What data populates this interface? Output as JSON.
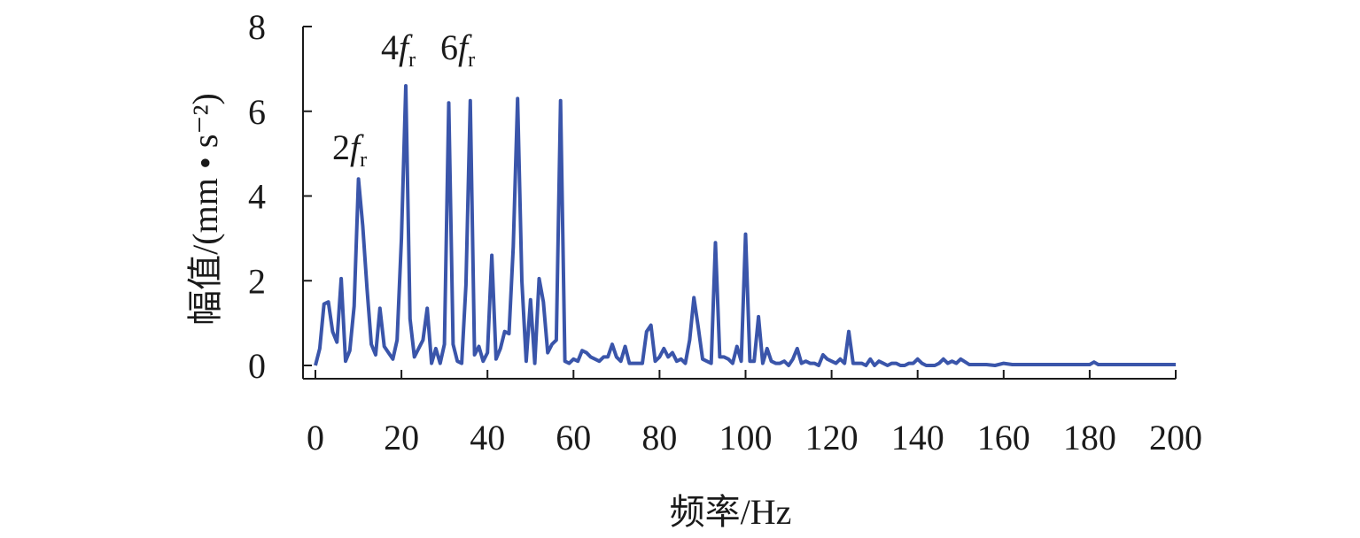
{
  "chart_data": {
    "type": "line",
    "title": "",
    "xlabel": "频率/Hz",
    "ylabel": "幅值/(mm • s⁻²)",
    "xlim": [
      0,
      200
    ],
    "ylim": [
      0,
      8
    ],
    "xticks": [
      0,
      20,
      40,
      60,
      80,
      100,
      120,
      140,
      160,
      180,
      200
    ],
    "yticks": [
      0,
      2,
      4,
      6,
      8
    ],
    "grid": false,
    "line_color": "#3a55aa",
    "series": [
      {
        "x": [
          0,
          1,
          2,
          3,
          4,
          5,
          6,
          7,
          8,
          9,
          10,
          11,
          12,
          13,
          14,
          15,
          16,
          17,
          18,
          19,
          20,
          21,
          22,
          23,
          24,
          25,
          26,
          27,
          28,
          29,
          30,
          31,
          32,
          33,
          34,
          35,
          36,
          37,
          38,
          39,
          40,
          41,
          42,
          43,
          44,
          45,
          46,
          47,
          48,
          49,
          50,
          51,
          52,
          53,
          54,
          55,
          56,
          57,
          58,
          59,
          60,
          61,
          62,
          63,
          64,
          65,
          66,
          67,
          68,
          69,
          70,
          71,
          72,
          73,
          74,
          75,
          76,
          77,
          78,
          79,
          80,
          81,
          82,
          83,
          84,
          85,
          86,
          87,
          88,
          89,
          90,
          91,
          92,
          93,
          94,
          95,
          96,
          97,
          98,
          99,
          100,
          101,
          102,
          103,
          104,
          105,
          106,
          107,
          108,
          109,
          110,
          111,
          112,
          113,
          114,
          115,
          116,
          117,
          118,
          119,
          120,
          121,
          122,
          123,
          124,
          125,
          126,
          127,
          128,
          129,
          130,
          131,
          132,
          133,
          134,
          135,
          136,
          137,
          138,
          139,
          140,
          141,
          142,
          143,
          144,
          145,
          146,
          147,
          148,
          149,
          150,
          152,
          154,
          156,
          158,
          160,
          162,
          164,
          166,
          168,
          170,
          172,
          174,
          176,
          178,
          180,
          181,
          182,
          184,
          186,
          188,
          190,
          192,
          194,
          196,
          198,
          200
        ],
        "values": [
          0.0,
          0.4,
          1.45,
          1.5,
          0.8,
          0.55,
          2.05,
          0.1,
          0.35,
          1.4,
          4.4,
          3.3,
          1.8,
          0.5,
          0.25,
          1.35,
          0.45,
          0.3,
          0.15,
          0.6,
          3.0,
          6.6,
          1.1,
          0.2,
          0.4,
          0.6,
          1.35,
          0.05,
          0.4,
          0.05,
          0.5,
          6.2,
          0.5,
          0.1,
          0.05,
          1.9,
          6.25,
          0.25,
          0.45,
          0.1,
          0.3,
          2.6,
          0.15,
          0.4,
          0.8,
          0.75,
          2.8,
          6.3,
          2.0,
          0.1,
          1.55,
          0.05,
          2.05,
          1.5,
          0.3,
          0.5,
          0.6,
          6.25,
          0.1,
          0.05,
          0.15,
          0.1,
          0.35,
          0.3,
          0.2,
          0.15,
          0.1,
          0.2,
          0.2,
          0.5,
          0.2,
          0.1,
          0.45,
          0.05,
          0.05,
          0.05,
          0.05,
          0.8,
          0.95,
          0.1,
          0.2,
          0.4,
          0.2,
          0.3,
          0.1,
          0.15,
          0.05,
          0.6,
          1.6,
          0.9,
          0.15,
          0.1,
          0.05,
          2.9,
          0.2,
          0.2,
          0.15,
          0.05,
          0.45,
          0.1,
          3.1,
          0.1,
          0.1,
          1.15,
          0.05,
          0.4,
          0.1,
          0.05,
          0.05,
          0.1,
          0.0,
          0.15,
          0.4,
          0.05,
          0.1,
          0.05,
          0.05,
          0.0,
          0.25,
          0.15,
          0.1,
          0.05,
          0.15,
          0.05,
          0.8,
          0.05,
          0.05,
          0.05,
          0.0,
          0.15,
          0.0,
          0.1,
          0.05,
          0.0,
          0.05,
          0.05,
          0.0,
          0.0,
          0.05,
          0.05,
          0.15,
          0.05,
          0.0,
          0.0,
          0.0,
          0.05,
          0.15,
          0.05,
          0.1,
          0.05,
          0.15,
          0.02,
          0.02,
          0.02,
          0.0,
          0.05,
          0.02,
          0.02,
          0.02,
          0.02,
          0.02,
          0.02,
          0.02,
          0.02,
          0.02,
          0.02,
          0.08,
          0.02,
          0.02,
          0.02,
          0.02,
          0.02,
          0.02,
          0.02,
          0.02,
          0.02,
          0.02
        ]
      }
    ],
    "annotations": [
      {
        "main": "2",
        "italic": "f",
        "sub": "r",
        "x": 10,
        "y": 4.4
      },
      {
        "main": "4",
        "italic": "f",
        "sub": "r",
        "x": 21,
        "y": 6.6
      },
      {
        "main": "6",
        "italic": "f",
        "sub": "r",
        "x": 31,
        "y": 6.6
      }
    ]
  }
}
